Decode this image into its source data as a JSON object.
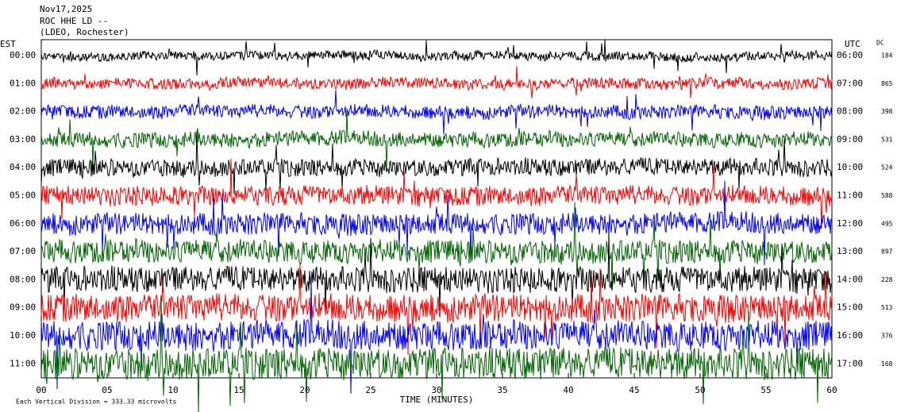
{
  "header": {
    "date": "Nov17,2025",
    "station": "ROC HHE LD --",
    "location": "(LDEO, Rochester)"
  },
  "chart_data": {
    "type": "helicorder",
    "x_label": "TIME (MINUTES)",
    "xlim": [
      0,
      60
    ],
    "xticks": [
      {
        "value": 0,
        "label": "00"
      },
      {
        "value": 5,
        "label": "05"
      },
      10,
      15,
      20,
      25,
      30,
      35,
      40,
      45,
      50,
      55,
      60
    ],
    "left_label": "EST",
    "right_label": "UTC",
    "dc_label": "DC",
    "scale_note": "Each Vertical Division = 333.33 microvolts",
    "rows": [
      {
        "est": "00:00",
        "utc": "06:00",
        "dc": 184,
        "color": "#000000"
      },
      {
        "est": "01:00",
        "utc": "07:00",
        "dc": 865,
        "color": "#ff0000"
      },
      {
        "est": "02:00",
        "utc": "08:00",
        "dc": 398,
        "color": "#0000ff"
      },
      {
        "est": "03:00",
        "utc": "09:00",
        "dc": 531,
        "color": "#006600"
      },
      {
        "est": "04:00",
        "utc": "10:00",
        "dc": 524,
        "color": "#000000"
      },
      {
        "est": "05:00",
        "utc": "11:00",
        "dc": 588,
        "color": "#ff0000"
      },
      {
        "est": "06:00",
        "utc": "12:00",
        "dc": 495,
        "color": "#0000ff"
      },
      {
        "est": "07:00",
        "utc": "13:00",
        "dc": 897,
        "color": "#006600"
      },
      {
        "est": "08:00",
        "utc": "14:00",
        "dc": 228,
        "color": "#000000"
      },
      {
        "est": "09:00",
        "utc": "15:00",
        "dc": 513,
        "color": "#ff0000"
      },
      {
        "est": "10:00",
        "utc": "16:00",
        "dc": 376,
        "color": "#0000ff"
      },
      {
        "est": "11:00",
        "utc": "17:00",
        "dc": 168,
        "color": "#006600"
      }
    ]
  }
}
